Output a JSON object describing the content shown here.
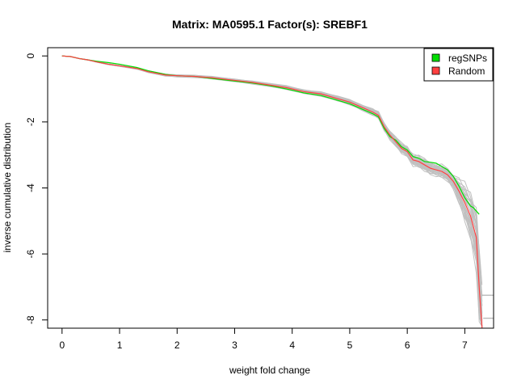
{
  "chart_data": {
    "type": "line",
    "title": "Matrix: MA0595.1 Factor(s): SREBF1",
    "xlabel": "weight fold change",
    "ylabel": "inverse cumulative distribution",
    "xlim": [
      -0.25,
      7.5
    ],
    "ylim": [
      -8.25,
      0.25
    ],
    "x_ticks": [
      0,
      1,
      2,
      3,
      4,
      5,
      6,
      7
    ],
    "y_ticks": [
      0,
      -2,
      -4,
      -6,
      -8
    ],
    "grid": false,
    "legend_position": "top-right",
    "colors": {
      "regSNPs": "#00dd00",
      "Random": "#ff4040",
      "background_runs": "#c0c0c0"
    },
    "series": [
      {
        "name": "regSNPs",
        "x": [
          0.0,
          0.15,
          0.3,
          0.45,
          0.6,
          0.8,
          1.0,
          1.3,
          1.5,
          1.8,
          2.0,
          2.3,
          2.6,
          3.0,
          3.3,
          3.6,
          3.9,
          4.2,
          4.5,
          4.8,
          5.0,
          5.2,
          5.4,
          5.5,
          5.6,
          5.7,
          5.8,
          5.9,
          6.0,
          6.1,
          6.2,
          6.3,
          6.4,
          6.5,
          6.6,
          6.7,
          6.8,
          6.9,
          7.0,
          7.1,
          7.15,
          7.2,
          7.25
        ],
        "y": [
          0.0,
          -0.02,
          -0.08,
          -0.12,
          -0.16,
          -0.2,
          -0.25,
          -0.35,
          -0.45,
          -0.56,
          -0.6,
          -0.62,
          -0.68,
          -0.76,
          -0.82,
          -0.9,
          -1.0,
          -1.12,
          -1.2,
          -1.35,
          -1.45,
          -1.6,
          -1.75,
          -1.85,
          -2.2,
          -2.45,
          -2.55,
          -2.75,
          -2.85,
          -3.05,
          -3.1,
          -3.2,
          -3.22,
          -3.25,
          -3.35,
          -3.45,
          -3.65,
          -3.95,
          -4.3,
          -4.55,
          -4.6,
          -4.7,
          -4.8
        ]
      },
      {
        "name": "Random",
        "x": [
          0.0,
          0.15,
          0.3,
          0.45,
          0.6,
          0.8,
          1.0,
          1.3,
          1.5,
          1.8,
          2.0,
          2.3,
          2.6,
          3.0,
          3.3,
          3.6,
          3.9,
          4.2,
          4.5,
          4.8,
          5.0,
          5.2,
          5.4,
          5.5,
          5.6,
          5.7,
          5.8,
          5.9,
          6.0,
          6.1,
          6.2,
          6.3,
          6.4,
          6.5,
          6.6,
          6.7,
          6.8,
          6.9,
          7.0,
          7.1,
          7.2,
          7.25,
          7.3
        ],
        "y": [
          0.0,
          -0.02,
          -0.08,
          -0.12,
          -0.18,
          -0.25,
          -0.3,
          -0.38,
          -0.48,
          -0.58,
          -0.6,
          -0.62,
          -0.66,
          -0.74,
          -0.8,
          -0.88,
          -0.96,
          -1.08,
          -1.15,
          -1.3,
          -1.4,
          -1.55,
          -1.7,
          -1.8,
          -2.15,
          -2.4,
          -2.6,
          -2.8,
          -2.9,
          -3.15,
          -3.2,
          -3.3,
          -3.4,
          -3.45,
          -3.5,
          -3.6,
          -3.8,
          -4.1,
          -4.45,
          -4.85,
          -5.5,
          -7.0,
          -8.3
        ]
      }
    ]
  },
  "legend": {
    "items": [
      {
        "label": "regSNPs",
        "color": "#00dd00"
      },
      {
        "label": "Random",
        "color": "#ff4040"
      }
    ]
  }
}
